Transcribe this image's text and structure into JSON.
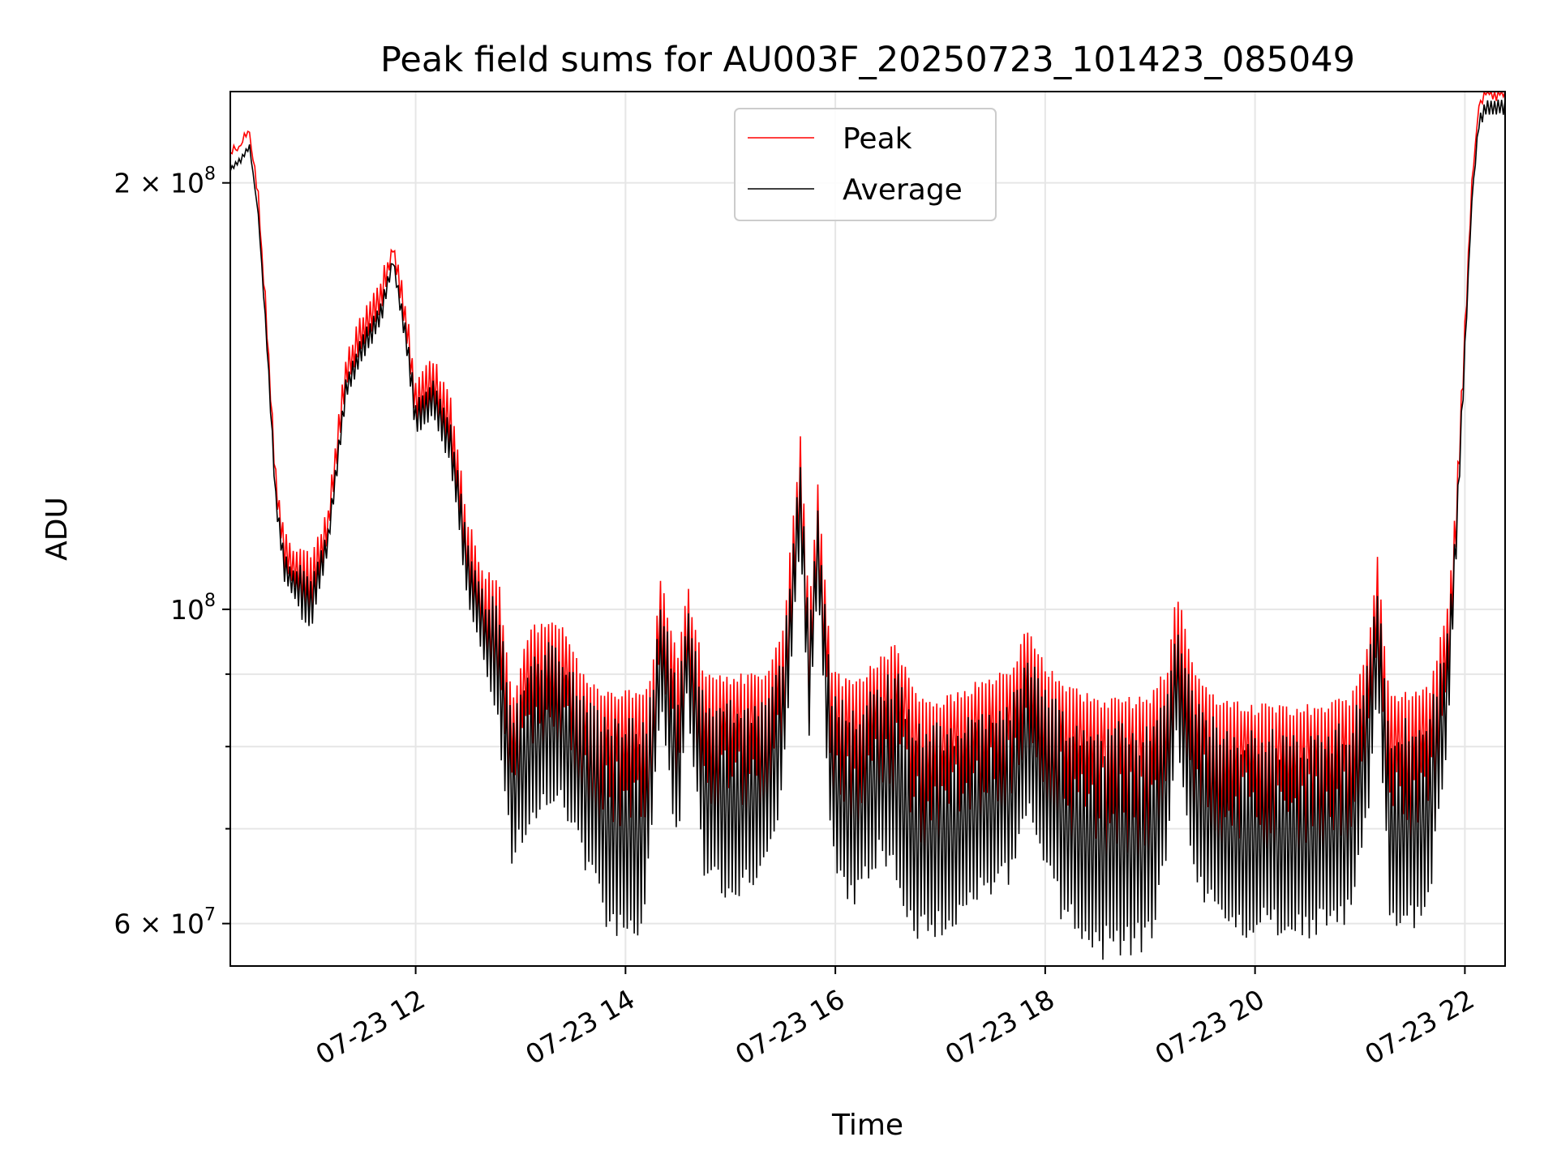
{
  "chart_data": {
    "type": "line",
    "title": "Peak field sums for AU003F_20250723_101423_085049",
    "xlabel": "Time",
    "ylabel": "ADU",
    "x_scale": "time",
    "y_scale": "log",
    "xlim": [
      "2025-07-23T10:14",
      "2025-07-23T22:23"
    ],
    "ylim": [
      56000000,
      232000000
    ],
    "x_ticks": [
      {
        "value": "2025-07-23T12:00",
        "label": "07-23 12"
      },
      {
        "value": "2025-07-23T14:00",
        "label": "07-23 14"
      },
      {
        "value": "2025-07-23T16:00",
        "label": "07-23 16"
      },
      {
        "value": "2025-07-23T18:00",
        "label": "07-23 18"
      },
      {
        "value": "2025-07-23T20:00",
        "label": "07-23 20"
      },
      {
        "value": "2025-07-23T22:00",
        "label": "07-23 22"
      }
    ],
    "y_major_ticks": [
      {
        "value": 60000000,
        "base": "6",
        "exp": "7"
      },
      {
        "value": 100000000,
        "base": "",
        "exp": "8"
      },
      {
        "value": 200000000,
        "base": "2",
        "exp": "8"
      }
    ],
    "y_minor_ticks": [
      70000000,
      80000000,
      90000000
    ],
    "grid": true,
    "legend_position": "top-center",
    "series": [
      {
        "name": "Peak",
        "color": "#ff0000",
        "band": "upper",
        "points": [
          [
            "2025-07-23T10:14",
            210000000
          ],
          [
            "2025-07-23T10:20",
            213000000
          ],
          [
            "2025-07-23T10:25",
            218000000
          ],
          [
            "2025-07-23T10:30",
            196000000
          ],
          [
            "2025-07-23T10:35",
            160000000
          ],
          [
            "2025-07-23T10:40",
            125000000
          ],
          [
            "2025-07-23T10:45",
            113000000
          ],
          [
            "2025-07-23T10:50",
            110000000
          ],
          [
            "2025-07-23T10:55",
            111000000
          ],
          [
            "2025-07-23T11:00",
            108000000
          ],
          [
            "2025-07-23T11:10",
            118000000
          ],
          [
            "2025-07-23T11:20",
            150000000
          ],
          [
            "2025-07-23T11:30",
            162000000
          ],
          [
            "2025-07-23T11:40",
            170000000
          ],
          [
            "2025-07-23T11:47",
            183000000
          ],
          [
            "2025-07-23T11:55",
            162000000
          ],
          [
            "2025-07-23T12:00",
            145000000
          ],
          [
            "2025-07-23T12:10",
            150000000
          ],
          [
            "2025-07-23T12:20",
            140000000
          ],
          [
            "2025-07-23T12:30",
            115000000
          ],
          [
            "2025-07-23T12:40",
            105000000
          ],
          [
            "2025-07-23T12:47",
            106000000
          ],
          [
            "2025-07-23T12:55",
            86000000
          ],
          [
            "2025-07-23T13:05",
            96000000
          ],
          [
            "2025-07-23T13:15",
            98000000
          ],
          [
            "2025-07-23T13:25",
            97000000
          ],
          [
            "2025-07-23T13:35",
            90000000
          ],
          [
            "2025-07-23T13:50",
            87000000
          ],
          [
            "2025-07-23T14:10",
            87000000
          ],
          [
            "2025-07-23T14:15",
            90000000
          ],
          [
            "2025-07-23T14:20",
            105000000
          ],
          [
            "2025-07-23T14:30",
            92000000
          ],
          [
            "2025-07-23T14:35",
            104000000
          ],
          [
            "2025-07-23T14:45",
            90000000
          ],
          [
            "2025-07-23T15:00",
            89000000
          ],
          [
            "2025-07-23T15:20",
            90000000
          ],
          [
            "2025-07-23T15:30",
            96000000
          ],
          [
            "2025-07-23T15:40",
            132000000
          ],
          [
            "2025-07-23T15:45",
            100000000
          ],
          [
            "2025-07-23T15:50",
            122000000
          ],
          [
            "2025-07-23T15:58",
            90000000
          ],
          [
            "2025-07-23T16:10",
            88000000
          ],
          [
            "2025-07-23T16:25",
            92000000
          ],
          [
            "2025-07-23T16:35",
            94000000
          ],
          [
            "2025-07-23T16:45",
            87000000
          ],
          [
            "2025-07-23T17:00",
            86000000
          ],
          [
            "2025-07-23T17:20",
            88000000
          ],
          [
            "2025-07-23T17:40",
            90000000
          ],
          [
            "2025-07-23T17:50",
            97000000
          ],
          [
            "2025-07-23T18:00",
            91000000
          ],
          [
            "2025-07-23T18:10",
            88000000
          ],
          [
            "2025-07-23T18:30",
            86000000
          ],
          [
            "2025-07-23T19:00",
            86000000
          ],
          [
            "2025-07-23T19:10",
            91000000
          ],
          [
            "2025-07-23T19:15",
            103000000
          ],
          [
            "2025-07-23T19:25",
            90000000
          ],
          [
            "2025-07-23T19:40",
            86000000
          ],
          [
            "2025-07-23T20:00",
            85000000
          ],
          [
            "2025-07-23T20:30",
            85000000
          ],
          [
            "2025-07-23T20:55",
            86000000
          ],
          [
            "2025-07-23T21:05",
            95000000
          ],
          [
            "2025-07-23T21:10",
            108000000
          ],
          [
            "2025-07-23T21:17",
            86000000
          ],
          [
            "2025-07-23T21:30",
            87000000
          ],
          [
            "2025-07-23T21:40",
            88000000
          ],
          [
            "2025-07-23T21:50",
            100000000
          ],
          [
            "2025-07-23T21:55",
            120000000
          ],
          [
            "2025-07-23T22:00",
            160000000
          ],
          [
            "2025-07-23T22:04",
            200000000
          ],
          [
            "2025-07-23T22:08",
            225000000
          ],
          [
            "2025-07-23T22:12",
            230000000
          ],
          [
            "2025-07-23T22:23",
            230000000
          ]
        ]
      },
      {
        "name": "Average",
        "color": "#000000",
        "band": "lower",
        "points": [
          [
            "2025-07-23T10:14",
            205000000
          ],
          [
            "2025-07-23T10:20",
            209000000
          ],
          [
            "2025-07-23T10:25",
            213000000
          ],
          [
            "2025-07-23T10:30",
            190000000
          ],
          [
            "2025-07-23T10:35",
            152000000
          ],
          [
            "2025-07-23T10:40",
            118000000
          ],
          [
            "2025-07-23T10:45",
            104000000
          ],
          [
            "2025-07-23T10:50",
            102000000
          ],
          [
            "2025-07-23T10:55",
            98000000
          ],
          [
            "2025-07-23T11:00",
            96000000
          ],
          [
            "2025-07-23T11:10",
            110000000
          ],
          [
            "2025-07-23T11:20",
            140000000
          ],
          [
            "2025-07-23T11:30",
            150000000
          ],
          [
            "2025-07-23T11:40",
            158000000
          ],
          [
            "2025-07-23T11:47",
            175000000
          ],
          [
            "2025-07-23T11:55",
            150000000
          ],
          [
            "2025-07-23T12:00",
            132000000
          ],
          [
            "2025-07-23T12:10",
            136000000
          ],
          [
            "2025-07-23T12:20",
            126000000
          ],
          [
            "2025-07-23T12:30",
            100000000
          ],
          [
            "2025-07-23T12:40",
            90000000
          ],
          [
            "2025-07-23T12:47",
            82000000
          ],
          [
            "2025-07-23T12:55",
            66000000
          ],
          [
            "2025-07-23T13:05",
            70000000
          ],
          [
            "2025-07-23T13:15",
            72000000
          ],
          [
            "2025-07-23T13:25",
            72000000
          ],
          [
            "2025-07-23T13:35",
            66000000
          ],
          [
            "2025-07-23T13:50",
            59000000
          ],
          [
            "2025-07-23T14:10",
            58000000
          ],
          [
            "2025-07-23T14:15",
            68000000
          ],
          [
            "2025-07-23T14:20",
            86000000
          ],
          [
            "2025-07-23T14:30",
            66000000
          ],
          [
            "2025-07-23T14:35",
            86000000
          ],
          [
            "2025-07-23T14:45",
            64000000
          ],
          [
            "2025-07-23T15:00",
            62000000
          ],
          [
            "2025-07-23T15:20",
            64000000
          ],
          [
            "2025-07-23T15:30",
            74000000
          ],
          [
            "2025-07-23T15:40",
            112000000
          ],
          [
            "2025-07-23T15:45",
            80000000
          ],
          [
            "2025-07-23T15:50",
            104000000
          ],
          [
            "2025-07-23T15:58",
            66000000
          ],
          [
            "2025-07-23T16:10",
            61000000
          ],
          [
            "2025-07-23T16:25",
            66000000
          ],
          [
            "2025-07-23T16:35",
            64000000
          ],
          [
            "2025-07-23T16:45",
            58000000
          ],
          [
            "2025-07-23T17:00",
            58000000
          ],
          [
            "2025-07-23T17:20",
            62000000
          ],
          [
            "2025-07-23T17:40",
            64000000
          ],
          [
            "2025-07-23T17:50",
            72000000
          ],
          [
            "2025-07-23T18:00",
            64000000
          ],
          [
            "2025-07-23T18:10",
            60000000
          ],
          [
            "2025-07-23T18:30",
            56500000
          ],
          [
            "2025-07-23T19:00",
            57000000
          ],
          [
            "2025-07-23T19:10",
            66000000
          ],
          [
            "2025-07-23T19:15",
            80000000
          ],
          [
            "2025-07-23T19:25",
            64000000
          ],
          [
            "2025-07-23T19:40",
            59000000
          ],
          [
            "2025-07-23T20:00",
            58500000
          ],
          [
            "2025-07-23T20:30",
            58500000
          ],
          [
            "2025-07-23T20:55",
            60000000
          ],
          [
            "2025-07-23T21:05",
            72000000
          ],
          [
            "2025-07-23T21:10",
            88000000
          ],
          [
            "2025-07-23T21:17",
            60000000
          ],
          [
            "2025-07-23T21:30",
            58500000
          ],
          [
            "2025-07-23T21:40",
            62000000
          ],
          [
            "2025-07-23T21:50",
            80000000
          ],
          [
            "2025-07-23T21:55",
            108000000
          ],
          [
            "2025-07-23T22:00",
            150000000
          ],
          [
            "2025-07-23T22:04",
            195000000
          ],
          [
            "2025-07-23T22:08",
            223000000
          ],
          [
            "2025-07-23T22:12",
            229000000
          ],
          [
            "2025-07-23T22:23",
            229000000
          ]
        ]
      }
    ]
  }
}
